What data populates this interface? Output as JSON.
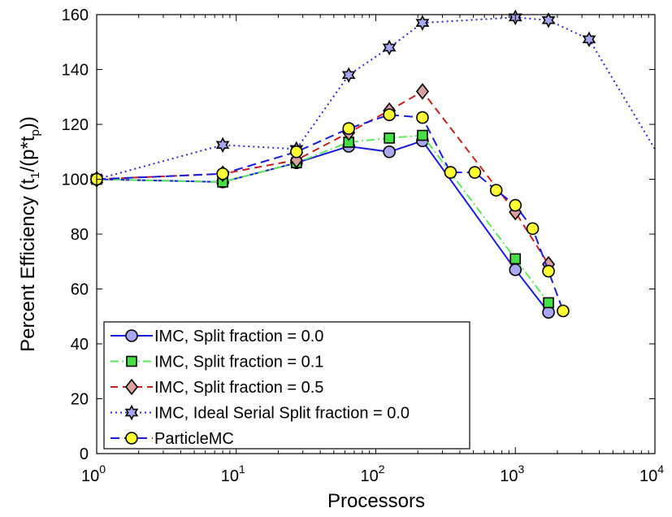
{
  "chart_data": {
    "type": "line",
    "xscale": "log",
    "xlabel": "Processors",
    "ylabel": "Percent Efficiency (t₁/(p*tₚ))",
    "ylabel_parts": {
      "main": "Percent Efficiency (t",
      "sub1": "1",
      "mid": "/(p*t",
      "sub2": "p",
      "end": "))"
    },
    "xlim": [
      1,
      10000
    ],
    "ylim": [
      0,
      160
    ],
    "xticks": [
      {
        "value": 1,
        "base": "10",
        "exp": "0"
      },
      {
        "value": 10,
        "base": "10",
        "exp": "1"
      },
      {
        "value": 100,
        "base": "10",
        "exp": "2"
      },
      {
        "value": 1000,
        "base": "10",
        "exp": "3"
      },
      {
        "value": 10000,
        "base": "10",
        "exp": "4"
      }
    ],
    "yticks": [
      0,
      20,
      40,
      60,
      80,
      100,
      120,
      140,
      160
    ],
    "grid": false,
    "legend_position": "bottom-left",
    "series": [
      {
        "name": "IMC, Split fraction = 0.0",
        "color": "#1a1adb",
        "dash": "solid",
        "marker": "circle",
        "marker_fill": "#a8a8f0",
        "x": [
          1,
          8,
          27,
          64,
          125,
          216,
          1000,
          1728
        ],
        "y": [
          100,
          99,
          106,
          112,
          110,
          114,
          67,
          51.5
        ]
      },
      {
        "name": "IMC, Split fraction = 0.1",
        "color": "#5ee65e",
        "dash": "dashdot",
        "marker": "square",
        "marker_fill": "#44e044",
        "x": [
          1,
          8,
          27,
          64,
          125,
          216,
          1000,
          1728
        ],
        "y": [
          100,
          99,
          106,
          113.5,
          115,
          116,
          71,
          55
        ]
      },
      {
        "name": "IMC, Split fraction = 0.5",
        "color": "#c81e1e",
        "dash": "dashed",
        "marker": "diamond",
        "marker_fill": "#d9a0a0",
        "x": [
          1,
          8,
          27,
          64,
          125,
          216,
          1000,
          1728
        ],
        "y": [
          100,
          102,
          107,
          117,
          125,
          132,
          88,
          69
        ]
      },
      {
        "name": "IMC, Ideal Serial Split fraction = 0.0",
        "color": "#2a2ad0",
        "dash": "dotted",
        "marker": "hexagram",
        "marker_fill": "#a8a8f0",
        "x": [
          1,
          8,
          27,
          64,
          125,
          216,
          1000,
          1728,
          3375,
          10000
        ],
        "y": [
          100,
          112.5,
          111,
          138,
          148,
          157,
          159,
          158,
          151,
          111
        ]
      },
      {
        "name": "ParticleMC",
        "color": "#1a1adb",
        "dash": "longdash",
        "marker": "circle",
        "marker_fill": "#ffff33",
        "x": [
          1,
          8,
          27,
          64,
          125,
          216,
          343,
          512,
          729,
          1000,
          1331,
          1728,
          2197
        ],
        "y": [
          100,
          102,
          110,
          118.5,
          123.5,
          122.5,
          102.5,
          102.5,
          96,
          90.5,
          82,
          66.5,
          52
        ]
      }
    ]
  }
}
